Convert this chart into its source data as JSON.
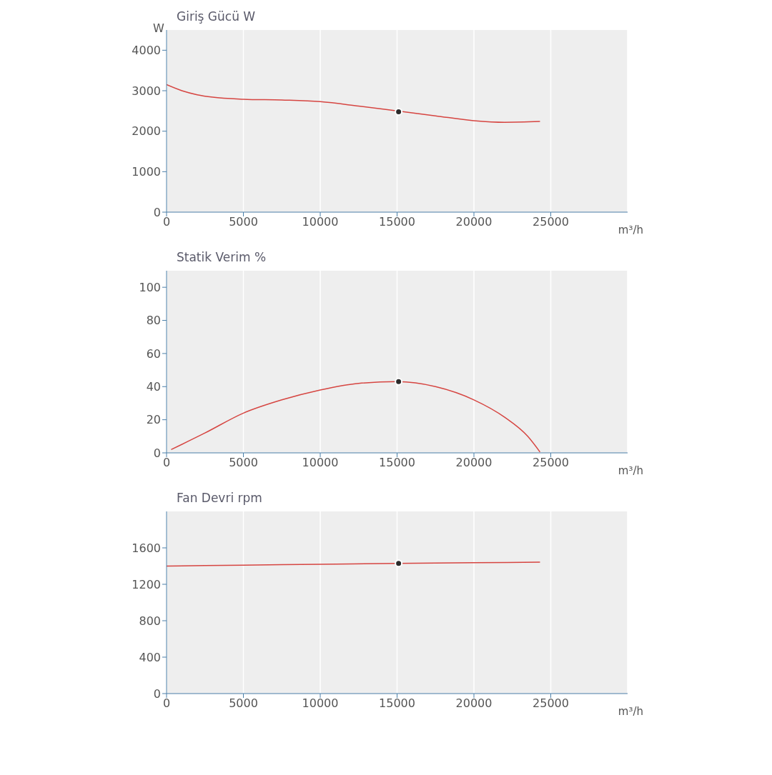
{
  "chart_data": [
    {
      "type": "line",
      "title": "Giriş Gücü W",
      "ylabel": "W",
      "xlabel": "m³/h",
      "xlim": [
        0,
        30000
      ],
      "xticks": [
        0,
        5000,
        10000,
        15000,
        20000,
        25000
      ],
      "ylim": [
        0,
        4500
      ],
      "yticks": [
        0,
        1000,
        2000,
        3000,
        4000
      ],
      "grid": "x",
      "series": [
        {
          "type": "line",
          "color": "#d64541",
          "marker": "none",
          "x": [
            0,
            1000,
            2000,
            3000,
            5000,
            7500,
            10000,
            12500,
            15000,
            17500,
            20000,
            22000,
            24300
          ],
          "values": [
            3150,
            3000,
            2900,
            2840,
            2790,
            2770,
            2730,
            2620,
            2500,
            2380,
            2260,
            2220,
            2240
          ]
        },
        {
          "type": "scatter",
          "color": "#2b2b2b",
          "marker": "circle",
          "x": [
            15100
          ],
          "values": [
            2480
          ]
        }
      ]
    },
    {
      "type": "line",
      "title": "Statik Verim %",
      "xlabel": "m³/h",
      "xlim": [
        0,
        30000
      ],
      "xticks": [
        0,
        5000,
        10000,
        15000,
        20000,
        25000
      ],
      "ylim": [
        0,
        110
      ],
      "yticks": [
        0,
        20,
        40,
        60,
        80,
        100
      ],
      "grid": "x",
      "series": [
        {
          "type": "line",
          "color": "#d64541",
          "marker": "none",
          "x": [
            300,
            2500,
            5000,
            7500,
            10000,
            12500,
            15000,
            17500,
            20000,
            22000,
            23500,
            24300
          ],
          "values": [
            2,
            12,
            24,
            32,
            38,
            42,
            43,
            40,
            32,
            21.5,
            10,
            0.5
          ]
        },
        {
          "type": "scatter",
          "color": "#2b2b2b",
          "marker": "circle",
          "x": [
            15100
          ],
          "values": [
            43
          ]
        }
      ]
    },
    {
      "type": "line",
      "title": "Fan Devri rpm",
      "xlabel": "m³/h",
      "xlim": [
        0,
        30000
      ],
      "xticks": [
        0,
        5000,
        10000,
        15000,
        20000,
        25000
      ],
      "ylim": [
        0,
        2000
      ],
      "yticks": [
        0,
        400,
        800,
        1200,
        1600
      ],
      "grid": "x",
      "series": [
        {
          "type": "line",
          "color": "#d64541",
          "marker": "none",
          "x": [
            0,
            5000,
            10000,
            15000,
            20000,
            24300
          ],
          "values": [
            1400,
            1410,
            1420,
            1430,
            1437,
            1443
          ]
        },
        {
          "type": "scatter",
          "color": "#2b2b2b",
          "marker": "circle",
          "x": [
            15100
          ],
          "values": [
            1430
          ]
        }
      ]
    }
  ]
}
